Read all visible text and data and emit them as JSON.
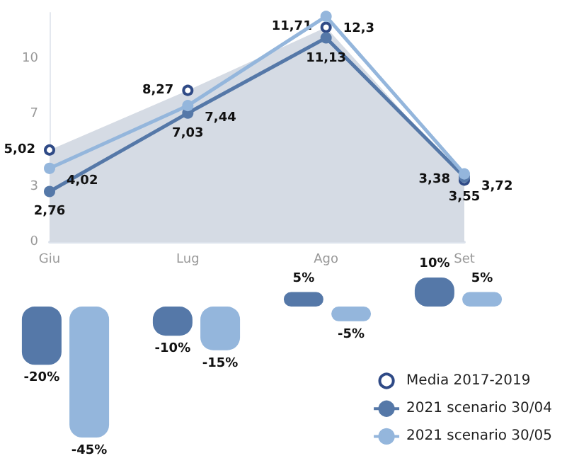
{
  "chart_data": [
    {
      "type": "line",
      "categories": [
        "Giu",
        "Lug",
        "Ago",
        "Set"
      ],
      "ylim": [
        0,
        12.5
      ],
      "yticks": [
        0,
        3,
        7,
        10
      ],
      "legend": "bottom right",
      "marker": "circle",
      "series": [
        {
          "name": "Media 2017-2019",
          "type": "area",
          "color": "#d5dbe4",
          "values": [
            5.02,
            8.27,
            11.71,
            3.38
          ],
          "value_labels": [
            "5,02",
            "8,27",
            "11,71",
            "3,38"
          ]
        },
        {
          "name": "2021 scenario 30/04",
          "color": "#5578a8",
          "values": [
            2.76,
            7.03,
            11.13,
            3.55
          ],
          "value_labels": [
            "2,76",
            "7,03",
            "11,13",
            "3,55"
          ]
        },
        {
          "name": "2021 scenario 30/05",
          "color": "#94b6dc",
          "values": [
            4.02,
            7.44,
            12.3,
            3.72
          ],
          "value_labels": [
            "4,02",
            "7,44",
            "12,3",
            "3,72"
          ]
        }
      ]
    },
    {
      "type": "bar",
      "categories": [
        null,
        null,
        null,
        null
      ],
      "series": [
        {
          "color": "#5578a8",
          "values": [
            -20,
            -10,
            5,
            10
          ],
          "value_labels": [
            "-20%",
            "-10%",
            "5%",
            "10%"
          ]
        },
        {
          "color": "#94b6dc",
          "values": [
            -45,
            -15,
            -5,
            5
          ],
          "value_labels": [
            "-45%",
            "-15%",
            "-5%",
            "5%"
          ]
        }
      ]
    }
  ]
}
